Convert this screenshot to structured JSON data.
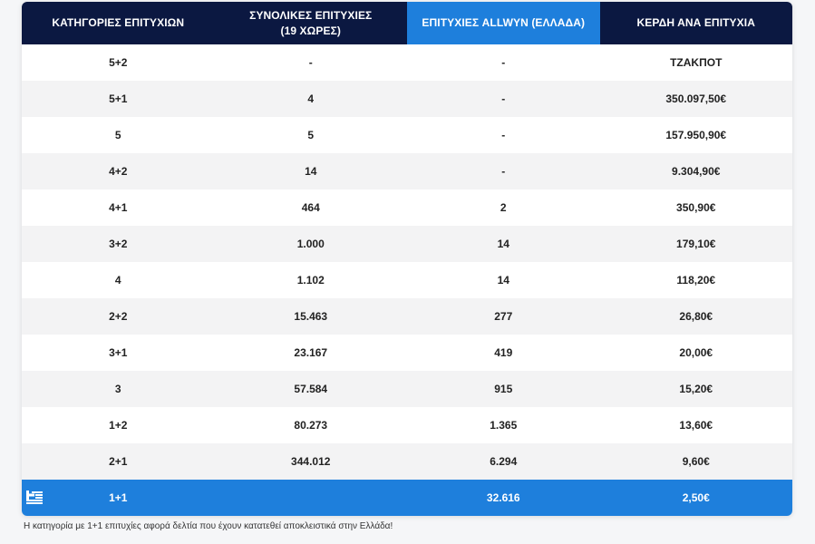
{
  "table": {
    "headers": {
      "category": "ΚΑΤΗΓΟΡΙΕΣ ΕΠΙΤΥΧΙΩΝ",
      "total_line1": "ΣΥΝΟΛΙΚΕΣ ΕΠΙΤΥΧΙΕΣ",
      "total_line2": "(19 ΧΩΡΕΣ)",
      "allwyn": "ΕΠΙΤΥΧΙΕΣ ALLWYN (ΕΛΛΑΔΑ)",
      "winnings": "ΚΕΡΔΗ ΑΝΑ ΕΠΙΤΥΧΙΑ"
    },
    "rows": [
      {
        "category": "5+2",
        "total": "-",
        "allwyn": "-",
        "winnings": "ΤΖΑΚΠΟΤ"
      },
      {
        "category": "5+1",
        "total": "4",
        "allwyn": "-",
        "winnings": "350.097,50€"
      },
      {
        "category": "5",
        "total": "5",
        "allwyn": "-",
        "winnings": "157.950,90€"
      },
      {
        "category": "4+2",
        "total": "14",
        "allwyn": "-",
        "winnings": "9.304,90€"
      },
      {
        "category": "4+1",
        "total": "464",
        "allwyn": "2",
        "winnings": "350,90€"
      },
      {
        "category": "3+2",
        "total": "1.000",
        "allwyn": "14",
        "winnings": "179,10€"
      },
      {
        "category": "4",
        "total": "1.102",
        "allwyn": "14",
        "winnings": "118,20€"
      },
      {
        "category": "2+2",
        "total": "15.463",
        "allwyn": "277",
        "winnings": "26,80€"
      },
      {
        "category": "3+1",
        "total": "23.167",
        "allwyn": "419",
        "winnings": "20,00€"
      },
      {
        "category": "3",
        "total": "57.584",
        "allwyn": "915",
        "winnings": "15,20€"
      },
      {
        "category": "1+2",
        "total": "80.273",
        "allwyn": "1.365",
        "winnings": "13,60€"
      },
      {
        "category": "2+1",
        "total": "344.012",
        "allwyn": "6.294",
        "winnings": "9,60€"
      }
    ],
    "footer_row": {
      "icon": "greek-flag-icon",
      "category": "1+1",
      "total": "",
      "allwyn": "32.616",
      "winnings": "2,50€"
    }
  },
  "footnote": "Η κατηγορία με 1+1 επιτυχίες αφορά δελτία που έχουν κατατεθεί αποκλειστικά στην Ελλάδα!",
  "colors": {
    "header_bg": "#0b1841",
    "highlight_blue": "#1e7fdc",
    "row_alt": "#f3f3f4",
    "row_bg": "#ffffff",
    "text_dark": "#222222"
  }
}
